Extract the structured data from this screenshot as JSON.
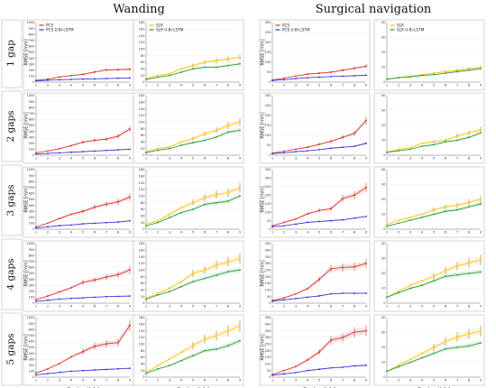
{
  "figure": {
    "section_titles": [
      "Wanding",
      "Surgical navigation"
    ],
    "row_labels": [
      "1 gap",
      "2 gaps",
      "3 gaps",
      "4 gaps",
      "5 gaps"
    ],
    "xlabel": "Gap length [s]",
    "ylabel": "RMSE [mm]",
    "legend_left": [
      "PCS",
      "PCS U-Bi-LSTM"
    ],
    "legend_right": [
      "SLR",
      "SLR U-Bi-LSTM"
    ],
    "colors": {
      "PCS": "#e02020",
      "PCS U-Bi-LSTM": "#2b2bd6",
      "SLR": "#ffc000",
      "SLR U-Bi-LSTM": "#1f9a2e",
      "errorbar": "#8b5a2b"
    }
  },
  "chart_data": [
    {
      "type": "line",
      "section": "Wanding",
      "row": "1 gap",
      "x": [
        1,
        2,
        3,
        4,
        5,
        6,
        7,
        8,
        9
      ],
      "ylim": [
        0,
        1000
      ],
      "yticks": [
        0,
        100,
        200,
        300,
        400,
        500,
        600,
        700,
        800,
        900,
        1000
      ],
      "series": [
        {
          "name": "PCS",
          "values": [
            30,
            50,
            85,
            110,
            130,
            170,
            205,
            210,
            215
          ]
        },
        {
          "name": "PCS U-Bi-LSTM",
          "values": [
            20,
            30,
            40,
            45,
            50,
            55,
            60,
            65,
            70
          ]
        }
      ]
    },
    {
      "type": "line",
      "section": "Wanding",
      "row": "1 gap",
      "x": [
        1,
        2,
        3,
        4,
        5,
        6,
        7,
        8,
        9
      ],
      "ylim": [
        0,
        180
      ],
      "yticks": [
        0,
        20,
        40,
        60,
        80,
        100,
        120,
        140,
        160,
        180
      ],
      "series": [
        {
          "name": "SLR",
          "values": [
            10,
            20,
            25,
            40,
            50,
            60,
            65,
            70,
            75
          ]
        },
        {
          "name": "SLR U-Bi-LSTM",
          "values": [
            8,
            15,
            20,
            30,
            40,
            45,
            45,
            50,
            55
          ]
        }
      ]
    },
    {
      "type": "line",
      "section": "Surgical navigation",
      "row": "1 gap",
      "x": [
        1,
        2,
        3,
        4,
        5,
        6,
        7,
        8,
        9
      ],
      "ylim": [
        0,
        300
      ],
      "yticks": [
        0,
        50,
        100,
        150,
        200,
        250,
        300
      ],
      "series": [
        {
          "name": "PCS",
          "values": [
            10,
            20,
            30,
            40,
            45,
            50,
            60,
            70,
            80
          ]
        },
        {
          "name": "PCS U-Bi-LSTM",
          "values": [
            8,
            12,
            18,
            22,
            25,
            28,
            30,
            32,
            35
          ]
        }
      ]
    },
    {
      "type": "line",
      "section": "Surgical navigation",
      "row": "1 gap",
      "x": [
        1,
        2,
        3,
        4,
        5,
        6,
        7,
        8,
        9
      ],
      "ylim": [
        0,
        40
      ],
      "yticks": [
        0,
        10,
        20,
        30,
        40
      ],
      "series": [
        {
          "name": "SLR",
          "values": [
            2,
            3,
            4,
            5,
            6,
            7,
            8,
            9,
            10
          ]
        },
        {
          "name": "SLR U-Bi-LSTM",
          "values": [
            2,
            3,
            3.5,
            4.5,
            5,
            6,
            7,
            8,
            9
          ]
        }
      ]
    },
    {
      "type": "line",
      "section": "Wanding",
      "row": "2 gaps",
      "x": [
        1,
        2,
        3,
        4,
        5,
        6,
        7,
        8,
        9
      ],
      "ylim": [
        0,
        1000
      ],
      "yticks": [
        0,
        100,
        200,
        300,
        400,
        500,
        600,
        700,
        800,
        900,
        1000
      ],
      "series": [
        {
          "name": "PCS",
          "values": [
            40,
            70,
            110,
            160,
            220,
            250,
            270,
            320,
            440
          ]
        },
        {
          "name": "PCS U-Bi-LSTM",
          "values": [
            20,
            30,
            40,
            50,
            60,
            70,
            80,
            90,
            100
          ]
        }
      ]
    },
    {
      "type": "line",
      "section": "Wanding",
      "row": "2 gaps",
      "x": [
        1,
        2,
        3,
        4,
        5,
        6,
        7,
        8,
        9
      ],
      "ylim": [
        0,
        180
      ],
      "yticks": [
        0,
        20,
        40,
        60,
        80,
        100,
        120,
        140,
        160,
        180
      ],
      "series": [
        {
          "name": "SLR",
          "values": [
            10,
            20,
            25,
            40,
            50,
            65,
            75,
            90,
            100
          ]
        },
        {
          "name": "SLR U-Bi-LSTM",
          "values": [
            8,
            15,
            20,
            30,
            38,
            45,
            55,
            70,
            75
          ]
        }
      ]
    },
    {
      "type": "line",
      "section": "Surgical navigation",
      "row": "2 gaps",
      "x": [
        1,
        2,
        3,
        4,
        5,
        6,
        7,
        8,
        9
      ],
      "ylim": [
        0,
        300
      ],
      "yticks": [
        0,
        50,
        100,
        150,
        200,
        250,
        300
      ],
      "series": [
        {
          "name": "PCS",
          "values": [
            10,
            20,
            30,
            40,
            55,
            70,
            90,
            110,
            175
          ]
        },
        {
          "name": "PCS U-Bi-LSTM",
          "values": [
            8,
            12,
            18,
            22,
            28,
            35,
            40,
            45,
            60
          ]
        }
      ]
    },
    {
      "type": "line",
      "section": "Surgical navigation",
      "row": "2 gaps",
      "x": [
        1,
        2,
        3,
        4,
        5,
        6,
        7,
        8,
        9
      ],
      "ylim": [
        0,
        40
      ],
      "yticks": [
        0,
        10,
        20,
        30,
        40
      ],
      "series": [
        {
          "name": "SLR",
          "values": [
            2,
            4,
            5,
            8,
            9,
            10,
            13,
            15,
            17
          ]
        },
        {
          "name": "SLR U-Bi-LSTM",
          "values": [
            2,
            3,
            4,
            6,
            7,
            9,
            10,
            12,
            15
          ]
        }
      ]
    },
    {
      "type": "line",
      "section": "Wanding",
      "row": "3 gaps",
      "x": [
        1,
        2,
        3,
        4,
        5,
        6,
        7,
        8,
        9
      ],
      "ylim": [
        0,
        1000
      ],
      "yticks": [
        0,
        100,
        200,
        300,
        400,
        500,
        600,
        700,
        800,
        900,
        1000
      ],
      "series": [
        {
          "name": "PCS",
          "values": [
            40,
            100,
            180,
            250,
            300,
            370,
            420,
            460,
            540
          ]
        },
        {
          "name": "PCS U-Bi-LSTM",
          "values": [
            20,
            40,
            60,
            70,
            90,
            100,
            110,
            120,
            140
          ]
        }
      ]
    },
    {
      "type": "line",
      "section": "Wanding",
      "row": "3 gaps",
      "x": [
        1,
        2,
        3,
        4,
        5,
        6,
        7,
        8,
        9
      ],
      "ylim": [
        0,
        180
      ],
      "yticks": [
        0,
        20,
        40,
        60,
        80,
        100,
        120,
        140,
        160,
        180
      ],
      "series": [
        {
          "name": "SLR",
          "values": [
            15,
            25,
            45,
            65,
            80,
            95,
            105,
            110,
            125
          ]
        },
        {
          "name": "SLR U-Bi-LSTM",
          "values": [
            10,
            20,
            35,
            50,
            60,
            75,
            80,
            85,
            100
          ]
        }
      ]
    },
    {
      "type": "line",
      "section": "Surgical navigation",
      "row": "3 gaps",
      "x": [
        1,
        2,
        3,
        4,
        5,
        6,
        7,
        8,
        9
      ],
      "ylim": [
        0,
        350
      ],
      "yticks": [
        0,
        50,
        100,
        150,
        200,
        250,
        300,
        350
      ],
      "series": [
        {
          "name": "PCS",
          "values": [
            20,
            40,
            60,
            90,
            110,
            120,
            180,
            200,
            245
          ]
        },
        {
          "name": "PCS U-Bi-LSTM",
          "values": [
            15,
            20,
            30,
            40,
            45,
            50,
            55,
            65,
            75
          ]
        }
      ]
    },
    {
      "type": "line",
      "section": "Surgical navigation",
      "row": "3 gaps",
      "x": [
        1,
        2,
        3,
        4,
        5,
        6,
        7,
        8,
        9
      ],
      "ylim": [
        0,
        40
      ],
      "yticks": [
        0,
        10,
        20,
        30,
        40
      ],
      "series": [
        {
          "name": "SLR",
          "values": [
            3,
            6,
            8,
            10,
            13,
            15,
            16,
            18,
            20
          ]
        },
        {
          "name": "SLR U-Bi-LSTM",
          "values": [
            2,
            4,
            6,
            8,
            10,
            12,
            13,
            15,
            17
          ]
        }
      ]
    },
    {
      "type": "line",
      "section": "Wanding",
      "row": "4 gaps",
      "x": [
        1,
        2,
        3,
        4,
        5,
        6,
        7,
        8,
        9
      ],
      "ylim": [
        0,
        1000
      ],
      "yticks": [
        0,
        100,
        200,
        300,
        400,
        500,
        600,
        700,
        800,
        900,
        1000
      ],
      "series": [
        {
          "name": "PCS",
          "values": [
            60,
            120,
            190,
            260,
            350,
            390,
            440,
            480,
            560
          ]
        },
        {
          "name": "PCS U-Bi-LSTM",
          "values": [
            30,
            50,
            70,
            80,
            90,
            100,
            110,
            115,
            120
          ]
        }
      ]
    },
    {
      "type": "line",
      "section": "Wanding",
      "row": "4 gaps",
      "x": [
        1,
        2,
        3,
        4,
        5,
        6,
        7,
        8,
        9
      ],
      "ylim": [
        0,
        180
      ],
      "yticks": [
        0,
        20,
        40,
        60,
        80,
        100,
        120,
        140,
        160,
        180
      ],
      "series": [
        {
          "name": "SLR",
          "values": [
            15,
            30,
            45,
            65,
            90,
            100,
            115,
            125,
            135
          ]
        },
        {
          "name": "SLR U-Bi-LSTM",
          "values": [
            12,
            25,
            35,
            50,
            65,
            75,
            85,
            95,
            100
          ]
        }
      ]
    },
    {
      "type": "line",
      "section": "Surgical navigation",
      "row": "4 gaps",
      "x": [
        1,
        2,
        3,
        4,
        5,
        6,
        7,
        8,
        9
      ],
      "ylim": [
        0,
        450
      ],
      "yticks": [
        0,
        50,
        100,
        150,
        200,
        250,
        300,
        350,
        400,
        450
      ],
      "series": [
        {
          "name": "PCS",
          "values": [
            20,
            40,
            70,
            110,
            180,
            260,
            270,
            275,
            300
          ]
        },
        {
          "name": "PCS U-Bi-LSTM",
          "values": [
            15,
            25,
            35,
            45,
            55,
            70,
            75,
            75,
            75
          ]
        }
      ]
    },
    {
      "type": "line",
      "section": "Surgical navigation",
      "row": "4 gaps",
      "x": [
        1,
        2,
        3,
        4,
        5,
        6,
        7,
        8,
        9
      ],
      "ylim": [
        0,
        40
      ],
      "yticks": [
        0,
        10,
        20,
        30,
        40
      ],
      "series": [
        {
          "name": "SLR",
          "values": [
            4,
            8,
            12,
            15,
            18,
            22,
            25,
            27,
            29
          ]
        },
        {
          "name": "SLR U-Bi-LSTM",
          "values": [
            4,
            7,
            10,
            12,
            15,
            18,
            19,
            20,
            21
          ]
        }
      ]
    },
    {
      "type": "line",
      "section": "Wanding",
      "row": "5 gaps",
      "x": [
        1,
        2,
        3,
        4,
        5,
        6,
        7,
        8,
        9
      ],
      "ylim": [
        0,
        1000
      ],
      "yticks": [
        0,
        100,
        200,
        300,
        400,
        500,
        600,
        700,
        800,
        900,
        1000
      ],
      "series": [
        {
          "name": "PCS",
          "values": [
            70,
            140,
            230,
            340,
            430,
            520,
            560,
            580,
            870
          ]
        },
        {
          "name": "PCS U-Bi-LSTM",
          "values": [
            40,
            60,
            80,
            100,
            110,
            120,
            130,
            140,
            150
          ]
        }
      ]
    },
    {
      "type": "line",
      "section": "Wanding",
      "row": "5 gaps",
      "x": [
        1,
        2,
        3,
        4,
        5,
        6,
        7,
        8,
        9
      ],
      "ylim": [
        0,
        180
      ],
      "yticks": [
        0,
        20,
        40,
        60,
        80,
        100,
        120,
        140,
        160,
        180
      ],
      "series": [
        {
          "name": "SLR",
          "values": [
            15,
            35,
            55,
            75,
            95,
            115,
            125,
            140,
            155
          ]
        },
        {
          "name": "SLR U-Bi-LSTM",
          "values": [
            12,
            25,
            35,
            50,
            65,
            80,
            85,
            95,
            110
          ]
        }
      ]
    },
    {
      "type": "line",
      "section": "Surgical navigation",
      "row": "5 gaps",
      "x": [
        1,
        2,
        3,
        4,
        5,
        6,
        7,
        8,
        9
      ],
      "ylim": [
        0,
        450
      ],
      "yticks": [
        0,
        50,
        100,
        150,
        200,
        250,
        300,
        350,
        400,
        450
      ],
      "series": [
        {
          "name": "PCS",
          "values": [
            20,
            50,
            80,
            130,
            190,
            280,
            300,
            340,
            350
          ]
        },
        {
          "name": "PCS U-Bi-LSTM",
          "values": [
            15,
            25,
            35,
            50,
            60,
            70,
            75,
            85,
            90
          ]
        }
      ]
    },
    {
      "type": "line",
      "section": "Surgical navigation",
      "row": "5 gaps",
      "x": [
        1,
        2,
        3,
        4,
        5,
        6,
        7,
        8,
        9
      ],
      "ylim": [
        0,
        40
      ],
      "yticks": [
        0,
        10,
        20,
        30,
        40
      ],
      "series": [
        {
          "name": "SLR",
          "values": [
            4,
            8,
            12,
            16,
            20,
            24,
            27,
            29,
            31
          ]
        },
        {
          "name": "SLR U-Bi-LSTM",
          "values": [
            4,
            7,
            10,
            13,
            16,
            19,
            20,
            21,
            23
          ]
        }
      ]
    }
  ]
}
